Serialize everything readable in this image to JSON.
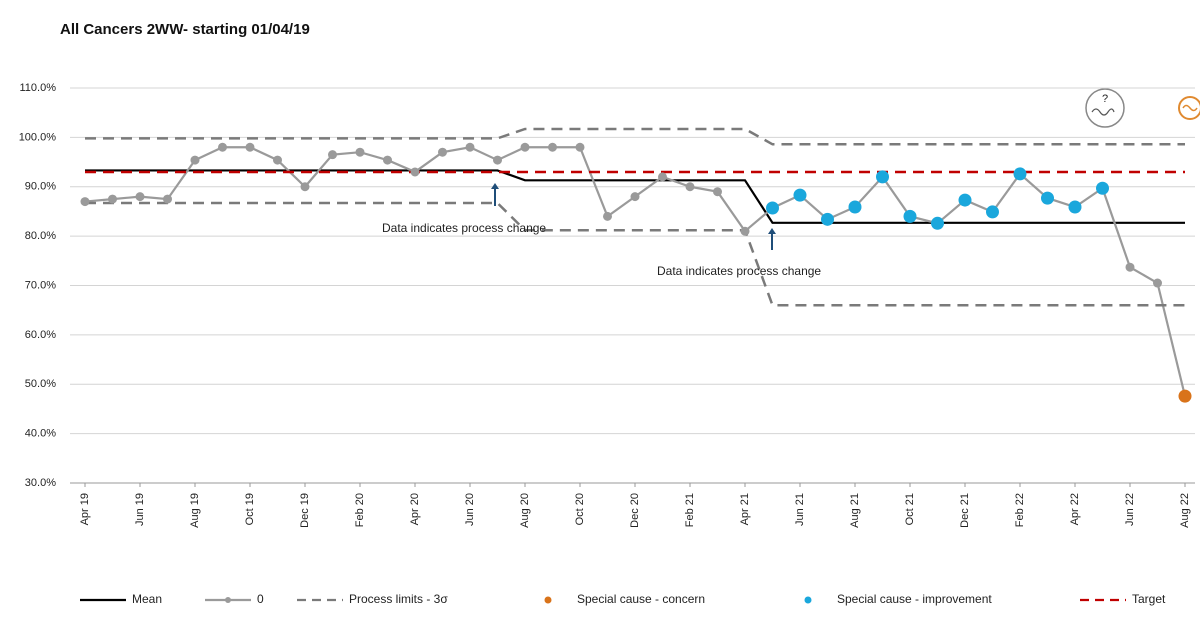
{
  "chart_data": {
    "type": "line",
    "title": "All Cancers 2WW- starting 01/04/19",
    "categories": [
      "Apr 19",
      null,
      "Jun 19",
      null,
      "Aug 19",
      null,
      "Oct 19",
      null,
      "Dec 19",
      null,
      "Feb 20",
      null,
      "Apr 20",
      null,
      "Jun 20",
      null,
      "Aug 20",
      null,
      "Oct 20",
      null,
      "Dec 20",
      null,
      "Feb 21",
      null,
      "Apr 21",
      null,
      "Jun 21",
      null,
      "Aug 21",
      null,
      "Oct 21",
      null,
      "Dec 21",
      null,
      "Feb 22",
      null,
      "Apr 22",
      null,
      "Jun 22",
      null,
      "Aug 22"
    ],
    "series": [
      {
        "name": "Mean",
        "color": "#000000",
        "dash": false,
        "line": true,
        "marker": false,
        "values": [
          93.3,
          93.3,
          93.3,
          93.3,
          93.3,
          93.3,
          93.3,
          93.3,
          93.3,
          93.3,
          93.3,
          93.3,
          93.3,
          93.3,
          93.3,
          93.3,
          91.3,
          91.3,
          91.3,
          91.3,
          91.3,
          91.3,
          91.3,
          91.3,
          91.3,
          82.7,
          82.7,
          82.7,
          82.7,
          82.7,
          82.7,
          82.7,
          82.7,
          82.7,
          82.7,
          82.7,
          82.7,
          82.7,
          82.7,
          82.7,
          82.7
        ]
      },
      {
        "name": "0",
        "color": "#9a9a9a",
        "dash": false,
        "line": true,
        "marker": true,
        "values": [
          87,
          87.5,
          88,
          87.5,
          95.4,
          98,
          98,
          95.4,
          90,
          96.5,
          97,
          95.4,
          93,
          97,
          98,
          95.4,
          98,
          98,
          98,
          84,
          88,
          92,
          90,
          89,
          81,
          85.7,
          88.3,
          83.4,
          85.9,
          92,
          84,
          82.6,
          87.3,
          84.9,
          92.6,
          87.7,
          85.9,
          89.7,
          73.7,
          70.5,
          47.6
        ]
      },
      {
        "name": "Process limits - 3σ",
        "color": "#7a7a7a",
        "dash": true,
        "line": true,
        "marker": false,
        "values": [
          99.8,
          99.8,
          99.8,
          99.8,
          99.8,
          99.8,
          99.8,
          99.8,
          99.8,
          99.8,
          99.8,
          99.8,
          99.8,
          99.8,
          99.8,
          99.8,
          101.7,
          101.7,
          101.7,
          101.7,
          101.7,
          101.7,
          101.7,
          101.7,
          101.7,
          98.6,
          98.6,
          98.6,
          98.6,
          98.6,
          98.6,
          98.6,
          98.6,
          98.6,
          98.6,
          98.6,
          98.6,
          98.6,
          98.6,
          98.6,
          98.6
        ],
        "values_lower": [
          86.7,
          86.7,
          86.7,
          86.7,
          86.7,
          86.7,
          86.7,
          86.7,
          86.7,
          86.7,
          86.7,
          86.7,
          86.7,
          86.7,
          86.7,
          86.7,
          81.2,
          81.2,
          81.2,
          81.2,
          81.2,
          81.2,
          81.2,
          81.2,
          81.2,
          66,
          66,
          66,
          66,
          66,
          66,
          66,
          66,
          66,
          66,
          66,
          66,
          66,
          66,
          66,
          66
        ]
      },
      {
        "name": "Special cause - concern",
        "color": "#d9731a",
        "dash": false,
        "line": false,
        "marker": true,
        "values": [
          null,
          null,
          null,
          null,
          null,
          null,
          null,
          null,
          null,
          null,
          null,
          null,
          null,
          null,
          null,
          null,
          null,
          null,
          null,
          null,
          null,
          null,
          null,
          null,
          null,
          null,
          null,
          null,
          null,
          null,
          null,
          null,
          null,
          null,
          null,
          null,
          null,
          null,
          null,
          null,
          47.6
        ]
      },
      {
        "name": "Special cause - improvement",
        "color": "#1aa7dc",
        "dash": false,
        "line": false,
        "marker": true,
        "values": [
          null,
          null,
          null,
          null,
          null,
          null,
          null,
          null,
          null,
          null,
          null,
          null,
          null,
          null,
          null,
          null,
          null,
          null,
          null,
          null,
          null,
          null,
          null,
          null,
          null,
          85.7,
          88.3,
          83.4,
          85.9,
          92,
          84,
          82.6,
          87.3,
          84.9,
          92.6,
          87.7,
          85.9,
          89.7,
          null,
          null,
          null
        ]
      },
      {
        "name": "Target",
        "color": "#c00000",
        "dash": true,
        "line": true,
        "marker": false,
        "values": [
          93,
          93,
          93,
          93,
          93,
          93,
          93,
          93,
          93,
          93,
          93,
          93,
          93,
          93,
          93,
          93,
          93,
          93,
          93,
          93,
          93,
          93,
          93,
          93,
          93,
          93,
          93,
          93,
          93,
          93,
          93,
          93,
          93,
          93,
          93,
          93,
          93,
          93,
          93,
          93,
          93
        ]
      }
    ],
    "ylim": [
      30,
      110
    ],
    "yticks": [
      {
        "value": 30,
        "label": "30.0%"
      },
      {
        "value": 40,
        "label": "40.0%"
      },
      {
        "value": 50,
        "label": "50.0%"
      },
      {
        "value": 60,
        "label": "60.0%"
      },
      {
        "value": 70,
        "label": "70.0%"
      },
      {
        "value": 80,
        "label": "80.0%"
      },
      {
        "value": 90,
        "label": "90.0%"
      },
      {
        "value": 100,
        "label": "100.0%"
      },
      {
        "value": 110,
        "label": "110.0%"
      }
    ],
    "grid": true,
    "annotations": [
      "Data indicates process change",
      "Data indicates process change"
    ],
    "icon_text": "?"
  }
}
